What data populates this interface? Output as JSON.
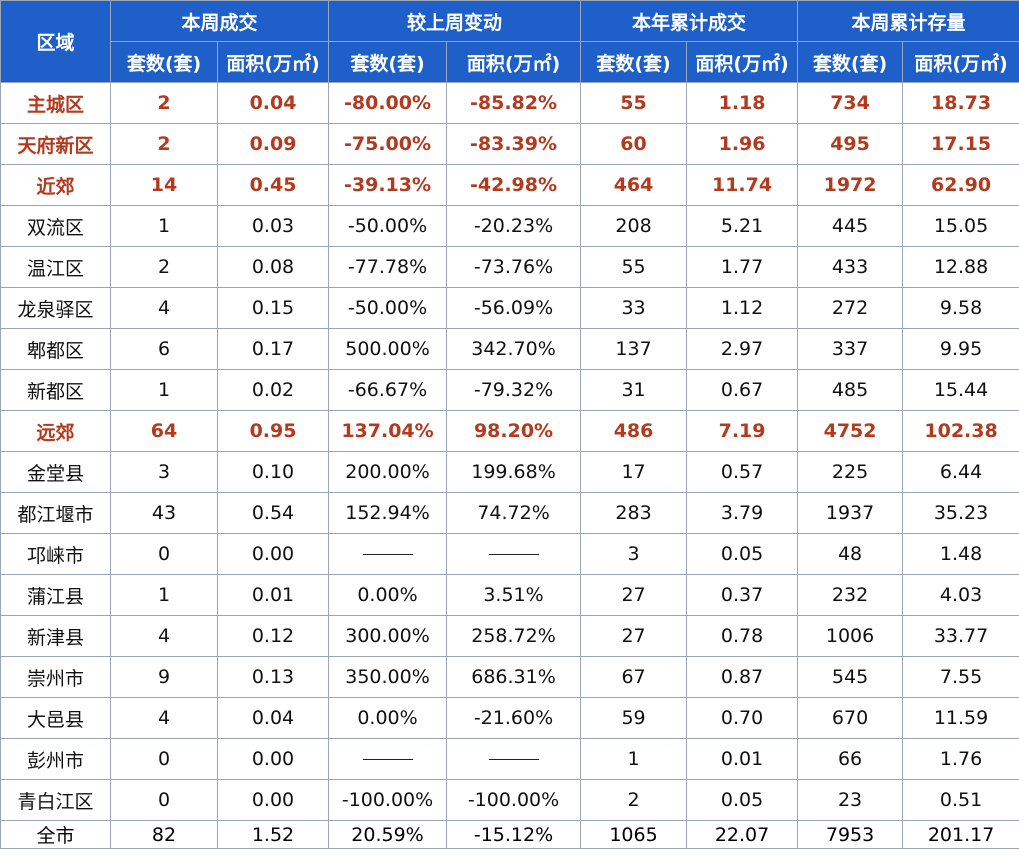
{
  "colors": {
    "header_bg": "#1f5fc9",
    "header_text": "#ffffff",
    "highlight_text": "#b23a1e",
    "grid": "#9aa6b6"
  },
  "headers": {
    "region": "区域",
    "groups": [
      "本周成交",
      "较上周变动",
      "本年累计成交",
      "本周累计存量"
    ],
    "sub": [
      "套数(套)",
      "面积(万㎡)",
      "套数(套)",
      "面积(万㎡)",
      "套数(套)",
      "面积(万㎡)",
      "套数(套)",
      "面积(万㎡)"
    ]
  },
  "rows": [
    {
      "type": "grp",
      "cells": [
        "主城区",
        "2",
        "0.04",
        "-80.00%",
        "-85.82%",
        "55",
        "1.18",
        "734",
        "18.73"
      ]
    },
    {
      "type": "grp",
      "cells": [
        "天府新区",
        "2",
        "0.09",
        "-75.00%",
        "-83.39%",
        "60",
        "1.96",
        "495",
        "17.15"
      ]
    },
    {
      "type": "grp",
      "cells": [
        "近郊",
        "14",
        "0.45",
        "-39.13%",
        "-42.98%",
        "464",
        "11.74",
        "1972",
        "62.90"
      ]
    },
    {
      "type": "sub",
      "cells": [
        "双流区",
        "1",
        "0.03",
        "-50.00%",
        "-20.23%",
        "208",
        "5.21",
        "445",
        "15.05"
      ]
    },
    {
      "type": "sub",
      "cells": [
        "温江区",
        "2",
        "0.08",
        "-77.78%",
        "-73.76%",
        "55",
        "1.77",
        "433",
        "12.88"
      ]
    },
    {
      "type": "sub",
      "cells": [
        "龙泉驿区",
        "4",
        "0.15",
        "-50.00%",
        "-56.09%",
        "33",
        "1.12",
        "272",
        "9.58"
      ]
    },
    {
      "type": "sub",
      "cells": [
        "郫都区",
        "6",
        "0.17",
        "500.00%",
        "342.70%",
        "137",
        "2.97",
        "337",
        "9.95"
      ]
    },
    {
      "type": "sub",
      "cells": [
        "新都区",
        "1",
        "0.02",
        "-66.67%",
        "-79.32%",
        "31",
        "0.67",
        "485",
        "15.44"
      ]
    },
    {
      "type": "grp",
      "cells": [
        "远郊",
        "64",
        "0.95",
        "137.04%",
        "98.20%",
        "486",
        "7.19",
        "4752",
        "102.38"
      ]
    },
    {
      "type": "sub",
      "cells": [
        "金堂县",
        "3",
        "0.10",
        "200.00%",
        "199.68%",
        "17",
        "0.57",
        "225",
        "6.44"
      ]
    },
    {
      "type": "sub",
      "cells": [
        "都江堰市",
        "43",
        "0.54",
        "152.94%",
        "74.72%",
        "283",
        "3.79",
        "1937",
        "35.23"
      ]
    },
    {
      "type": "sub",
      "cells": [
        "邛崃市",
        "0",
        "0.00",
        "",
        "",
        "3",
        "0.05",
        "48",
        "1.48"
      ]
    },
    {
      "type": "sub",
      "cells": [
        "蒲江县",
        "1",
        "0.01",
        "0.00%",
        "3.51%",
        "27",
        "0.37",
        "232",
        "4.03"
      ]
    },
    {
      "type": "sub",
      "cells": [
        "新津县",
        "4",
        "0.12",
        "300.00%",
        "258.72%",
        "27",
        "0.78",
        "1006",
        "33.77"
      ]
    },
    {
      "type": "sub",
      "cells": [
        "崇州市",
        "9",
        "0.13",
        "350.00%",
        "686.31%",
        "67",
        "0.87",
        "545",
        "7.55"
      ]
    },
    {
      "type": "sub",
      "cells": [
        "大邑县",
        "4",
        "0.04",
        "0.00%",
        "-21.60%",
        "59",
        "0.70",
        "670",
        "11.59"
      ]
    },
    {
      "type": "sub",
      "cells": [
        "彭州市",
        "0",
        "0.00",
        "",
        "",
        "1",
        "0.01",
        "66",
        "1.76"
      ]
    },
    {
      "type": "sub",
      "cells": [
        "青白江区",
        "0",
        "0.00",
        "-100.00%",
        "-100.00%",
        "2",
        "0.05",
        "23",
        "0.51"
      ]
    }
  ],
  "total": {
    "cells": [
      "全市",
      "82",
      "1.52",
      "20.59%",
      "-15.12%",
      "1065",
      "22.07",
      "7953",
      "201.17"
    ]
  }
}
